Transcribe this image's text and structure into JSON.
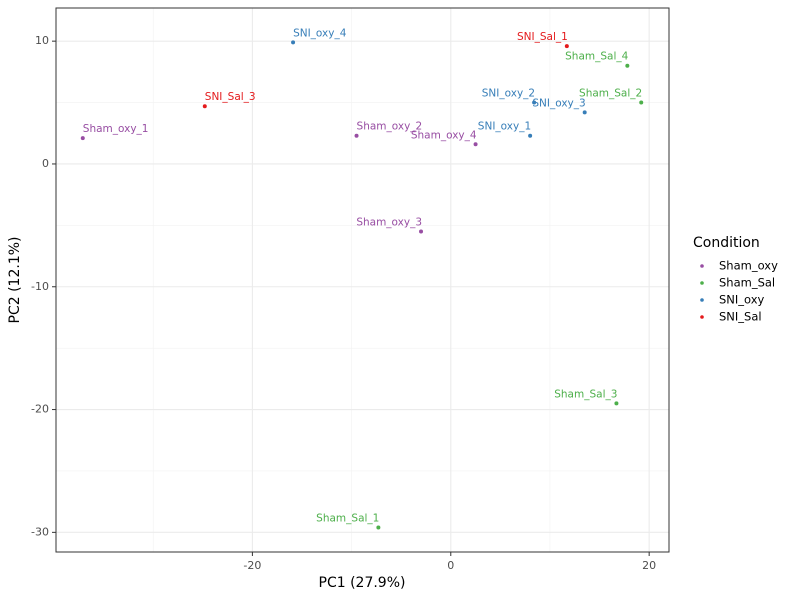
{
  "chart_data": {
    "type": "scatter",
    "x_label": "PC1 (27.9%)",
    "y_label": "PC2 (12.1%)",
    "legend_title": "Condition",
    "legend": "right",
    "grid": true,
    "xlim": [
      -39.8,
      22.0
    ],
    "xticks": [
      -20,
      0,
      20
    ],
    "ylim": [
      -31.6,
      12.7
    ],
    "yticks": [
      -30,
      -20,
      -10,
      0,
      10
    ],
    "series": [
      {
        "name": "Sham_oxy",
        "color": "#984ea3",
        "x": [
          -37.1,
          -9.5,
          -3.0,
          2.5
        ],
        "y": [
          2.1,
          2.3,
          -5.5,
          1.6
        ],
        "labels": [
          "Sham_oxy_1",
          "Sham_oxy_2",
          "Sham_oxy_3",
          "Sham_oxy_4"
        ]
      },
      {
        "name": "Sham_Sal",
        "color": "#4daf4a",
        "x": [
          -7.3,
          19.2,
          16.7,
          17.8
        ],
        "y": [
          -29.6,
          5.0,
          -19.5,
          8.0
        ],
        "labels": [
          "Sham_Sal_1",
          "Sham_Sal_2",
          "Sham_Sal_3",
          "Sham_Sal_4"
        ]
      },
      {
        "name": "SNI_oxy",
        "color": "#377eb8",
        "x": [
          8.0,
          8.4,
          13.5,
          -15.9
        ],
        "y": [
          2.3,
          5.0,
          4.2,
          9.9
        ],
        "labels": [
          "SNI_oxy_1",
          "SNI_oxy_2",
          "SNI_oxy_3",
          "SNI_oxy_4"
        ]
      },
      {
        "name": "SNI_Sal",
        "color": "#e41a1c",
        "x": [
          11.7,
          -24.8
        ],
        "y": [
          9.6,
          4.7
        ],
        "labels": [
          "SNI_Sal_1",
          "SNI_Sal_3"
        ]
      }
    ]
  }
}
